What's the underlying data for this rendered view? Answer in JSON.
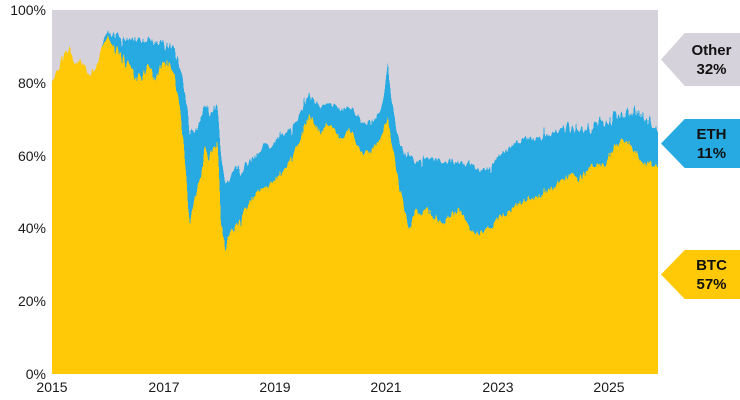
{
  "chart_data": {
    "type": "area",
    "stacked_percent": true,
    "title": "",
    "xlabel": "",
    "ylabel": "",
    "x_range": [
      2015.0,
      2025.88
    ],
    "ylim": [
      0,
      100
    ],
    "grid": false,
    "legend_position": "right-callouts",
    "y_ticks": [
      {
        "label": "100%",
        "value": 100
      },
      {
        "label": "80%",
        "value": 80
      },
      {
        "label": "60%",
        "value": 60
      },
      {
        "label": "40%",
        "value": 40
      },
      {
        "label": "20%",
        "value": 20
      },
      {
        "label": "0%",
        "value": 0
      }
    ],
    "x_ticks": [
      {
        "label": "2015",
        "year": 2015
      },
      {
        "label": "2017",
        "year": 2017
      },
      {
        "label": "2019",
        "year": 2019
      },
      {
        "label": "2021",
        "year": 2021
      },
      {
        "label": "2023",
        "year": 2023
      },
      {
        "label": "2025",
        "year": 2025
      }
    ],
    "series": [
      {
        "name": "BTC",
        "color": "#FFC907",
        "callout": {
          "label": "BTC",
          "value": "57%"
        }
      },
      {
        "name": "ETH",
        "color": "#27A9E1",
        "callout": {
          "label": "ETH",
          "value": "11%"
        }
      },
      {
        "name": "Other",
        "color": "#D5D2DB",
        "callout": {
          "label": "Other",
          "value": "32%"
        }
      }
    ],
    "points_format": [
      "year",
      "btc_pct",
      "eth_pct"
    ],
    "points": [
      [
        2015.0,
        80,
        0
      ],
      [
        2015.08,
        83,
        0
      ],
      [
        2015.17,
        87,
        0
      ],
      [
        2015.25,
        88.5,
        0
      ],
      [
        2015.33,
        89.5,
        0
      ],
      [
        2015.42,
        84.5,
        0
      ],
      [
        2015.5,
        86.5,
        0
      ],
      [
        2015.58,
        84.5,
        0
      ],
      [
        2015.67,
        82.5,
        0
      ],
      [
        2015.75,
        83.5,
        0
      ],
      [
        2015.83,
        86,
        0
      ],
      [
        2015.92,
        91,
        0.5
      ],
      [
        2016.0,
        93,
        1
      ],
      [
        2016.08,
        90,
        3
      ],
      [
        2016.17,
        88.5,
        4.5
      ],
      [
        2016.25,
        87.5,
        5
      ],
      [
        2016.33,
        85.5,
        6.5
      ],
      [
        2016.42,
        85,
        7.5
      ],
      [
        2016.5,
        82,
        10
      ],
      [
        2016.58,
        81,
        11
      ],
      [
        2016.67,
        82.5,
        9.5
      ],
      [
        2016.75,
        84.5,
        7
      ],
      [
        2016.83,
        80.5,
        10
      ],
      [
        2016.92,
        83.5,
        7.5
      ],
      [
        2017.0,
        86,
        5
      ],
      [
        2017.08,
        85.5,
        5
      ],
      [
        2017.17,
        84,
        6
      ],
      [
        2017.25,
        78,
        9.5
      ],
      [
        2017.33,
        68,
        14
      ],
      [
        2017.42,
        52,
        22
      ],
      [
        2017.47,
        40.5,
        26.5
      ],
      [
        2017.53,
        45,
        22
      ],
      [
        2017.6,
        49.5,
        18
      ],
      [
        2017.67,
        55,
        15
      ],
      [
        2017.75,
        62,
        12.5
      ],
      [
        2017.83,
        59,
        12
      ],
      [
        2017.92,
        62.5,
        11
      ],
      [
        2017.97,
        64,
        10
      ],
      [
        2018.03,
        42,
        17.5
      ],
      [
        2018.1,
        35,
        18
      ],
      [
        2018.17,
        36.5,
        17
      ],
      [
        2018.25,
        39.5,
        16
      ],
      [
        2018.33,
        41.5,
        15.5
      ],
      [
        2018.42,
        43.5,
        13
      ],
      [
        2018.5,
        45.5,
        12
      ],
      [
        2018.58,
        47,
        11.5
      ],
      [
        2018.67,
        49.5,
        10.5
      ],
      [
        2018.75,
        51,
        10.5
      ],
      [
        2018.83,
        51,
        12.5
      ],
      [
        2018.92,
        52.5,
        10
      ],
      [
        2019.0,
        53.5,
        10
      ],
      [
        2019.08,
        54.5,
        10.5
      ],
      [
        2019.17,
        55.5,
        10.5
      ],
      [
        2019.25,
        58,
        9
      ],
      [
        2019.33,
        60.5,
        8
      ],
      [
        2019.42,
        63.5,
        7
      ],
      [
        2019.5,
        66.5,
        6.5
      ],
      [
        2019.58,
        69.5,
        6
      ],
      [
        2019.67,
        70.5,
        5.5
      ],
      [
        2019.75,
        67.5,
        6
      ],
      [
        2019.83,
        66.5,
        6.5
      ],
      [
        2019.92,
        68.5,
        6
      ],
      [
        2020.0,
        68,
        6
      ],
      [
        2020.08,
        66.5,
        7
      ],
      [
        2020.17,
        65,
        7.5
      ],
      [
        2020.25,
        65.5,
        7.5
      ],
      [
        2020.33,
        67,
        6.5
      ],
      [
        2020.42,
        65.5,
        7
      ],
      [
        2020.5,
        62.5,
        8
      ],
      [
        2020.58,
        60.5,
        8
      ],
      [
        2020.67,
        61,
        8
      ],
      [
        2020.75,
        61.5,
        8
      ],
      [
        2020.83,
        63,
        7.5
      ],
      [
        2020.92,
        65.5,
        7.5
      ],
      [
        2021.0,
        69.5,
        12
      ],
      [
        2021.03,
        71,
        14.5
      ],
      [
        2021.08,
        65,
        12.5
      ],
      [
        2021.17,
        57,
        11.5
      ],
      [
        2021.25,
        50,
        12.5
      ],
      [
        2021.33,
        45.5,
        15
      ],
      [
        2021.42,
        39.5,
        21
      ],
      [
        2021.5,
        44,
        14.5
      ],
      [
        2021.58,
        44.5,
        13.5
      ],
      [
        2021.67,
        45.5,
        14
      ],
      [
        2021.75,
        44.5,
        15
      ],
      [
        2021.83,
        44,
        15.5
      ],
      [
        2021.92,
        42.5,
        16.5
      ],
      [
        2022.0,
        41.5,
        17
      ],
      [
        2022.08,
        42.5,
        16
      ],
      [
        2022.17,
        43.5,
        15
      ],
      [
        2022.25,
        44.5,
        13.5
      ],
      [
        2022.33,
        45,
        13
      ],
      [
        2022.42,
        42.5,
        15
      ],
      [
        2022.5,
        40,
        18
      ],
      [
        2022.58,
        39.5,
        17.5
      ],
      [
        2022.67,
        38.5,
        17.5
      ],
      [
        2022.75,
        39.5,
        16.5
      ],
      [
        2022.83,
        40,
        16.5
      ],
      [
        2022.92,
        41,
        16.5
      ],
      [
        2023.0,
        42.5,
        17
      ],
      [
        2023.08,
        43.5,
        17
      ],
      [
        2023.17,
        44,
        17.5
      ],
      [
        2023.25,
        45,
        17.5
      ],
      [
        2023.33,
        46.5,
        17.3
      ],
      [
        2023.42,
        47,
        17
      ],
      [
        2023.5,
        48,
        16.8
      ],
      [
        2023.58,
        48.3,
        16.5
      ],
      [
        2023.67,
        48.5,
        16
      ],
      [
        2023.75,
        49,
        15.5
      ],
      [
        2023.83,
        49.5,
        15.8
      ],
      [
        2023.92,
        50.5,
        15.2
      ],
      [
        2024.0,
        51,
        15.5
      ],
      [
        2024.08,
        52.5,
        14.5
      ],
      [
        2024.17,
        53.5,
        14
      ],
      [
        2024.25,
        54.7,
        13
      ],
      [
        2024.33,
        54.5,
        13.3
      ],
      [
        2024.42,
        53.8,
        14
      ],
      [
        2024.5,
        54,
        14
      ],
      [
        2024.58,
        55.5,
        12
      ],
      [
        2024.67,
        56.5,
        11
      ],
      [
        2024.75,
        57.5,
        10.5
      ],
      [
        2024.83,
        58,
        11.5
      ],
      [
        2024.92,
        57.5,
        11
      ],
      [
        2025.0,
        60,
        9.5
      ],
      [
        2025.08,
        62,
        8.5
      ],
      [
        2025.17,
        63.5,
        7.5
      ],
      [
        2025.25,
        64.5,
        7.2
      ],
      [
        2025.33,
        64,
        7.5
      ],
      [
        2025.42,
        62.5,
        9.5
      ],
      [
        2025.5,
        61,
        11
      ],
      [
        2025.58,
        59,
        12.5
      ],
      [
        2025.67,
        57.5,
        12.5
      ],
      [
        2025.75,
        57.5,
        12
      ],
      [
        2025.83,
        57,
        11.5
      ],
      [
        2025.88,
        57,
        11
      ]
    ],
    "noise": {
      "seed": 42,
      "btc_amp": 0.9,
      "top_amp": 0.8,
      "spike_prob": 0.06,
      "spike_amp": 3.4,
      "windows": [
        {
          "from": 2016.1,
          "to": 2018.6,
          "btc": 2.0,
          "top": 1.6
        },
        {
          "from": 2021.0,
          "to": 2022.3,
          "btc": 1.5,
          "top": 1.3
        },
        {
          "from": 2024.2,
          "to": 2025.9,
          "btc": 1.4,
          "top": 2.4
        }
      ]
    }
  }
}
